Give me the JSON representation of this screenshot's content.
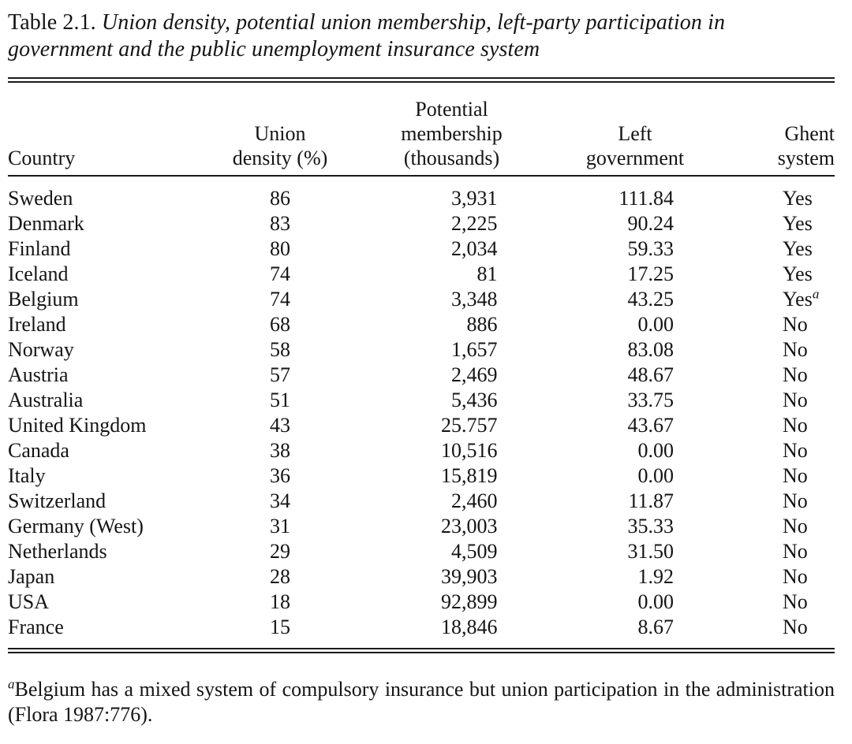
{
  "caption": {
    "label": "Table 2.1.",
    "title": "Union density, potential union membership, left-party participation in government and the public unemployment insurance system"
  },
  "headers": {
    "country": "Country",
    "density": [
      "Union",
      "density (%)"
    ],
    "membership": [
      "Potential",
      "membership",
      "(thousands)"
    ],
    "left": [
      "Left",
      "government"
    ],
    "ghent": [
      "Ghent",
      "system"
    ]
  },
  "rows": [
    {
      "country": "Sweden",
      "density": "86",
      "membership": "3,931",
      "left": "111.84",
      "ghent": "Yes",
      "note": ""
    },
    {
      "country": "Denmark",
      "density": "83",
      "membership": "2,225",
      "left": "90.24",
      "ghent": "Yes",
      "note": ""
    },
    {
      "country": "Finland",
      "density": "80",
      "membership": "2,034",
      "left": "59.33",
      "ghent": "Yes",
      "note": ""
    },
    {
      "country": "Iceland",
      "density": "74",
      "membership": "81",
      "left": "17.25",
      "ghent": "Yes",
      "note": ""
    },
    {
      "country": "Belgium",
      "density": "74",
      "membership": "3,348",
      "left": "43.25",
      "ghent": "Yes",
      "note": "a"
    },
    {
      "country": "Ireland",
      "density": "68",
      "membership": "886",
      "left": "0.00",
      "ghent": "No",
      "note": ""
    },
    {
      "country": "Norway",
      "density": "58",
      "membership": "1,657",
      "left": "83.08",
      "ghent": "No",
      "note": ""
    },
    {
      "country": "Austria",
      "density": "57",
      "membership": "2,469",
      "left": "48.67",
      "ghent": "No",
      "note": ""
    },
    {
      "country": "Australia",
      "density": "51",
      "membership": "5,436",
      "left": "33.75",
      "ghent": "No",
      "note": ""
    },
    {
      "country": "United Kingdom",
      "density": "43",
      "membership": "25.757",
      "left": "43.67",
      "ghent": "No",
      "note": ""
    },
    {
      "country": "Canada",
      "density": "38",
      "membership": "10,516",
      "left": "0.00",
      "ghent": "No",
      "note": ""
    },
    {
      "country": "Italy",
      "density": "36",
      "membership": "15,819",
      "left": "0.00",
      "ghent": "No",
      "note": ""
    },
    {
      "country": "Switzerland",
      "density": "34",
      "membership": "2,460",
      "left": "11.87",
      "ghent": "No",
      "note": ""
    },
    {
      "country": "Germany (West)",
      "density": "31",
      "membership": "23,003",
      "left": "35.33",
      "ghent": "No",
      "note": ""
    },
    {
      "country": "Netherlands",
      "density": "29",
      "membership": "4,509",
      "left": "31.50",
      "ghent": "No",
      "note": ""
    },
    {
      "country": "Japan",
      "density": "28",
      "membership": "39,903",
      "left": "1.92",
      "ghent": "No",
      "note": ""
    },
    {
      "country": "USA",
      "density": "18",
      "membership": "92,899",
      "left": "0.00",
      "ghent": "No",
      "note": ""
    },
    {
      "country": "France",
      "density": "15",
      "membership": "18,846",
      "left": "8.67",
      "ghent": "No",
      "note": ""
    }
  ],
  "footnote": {
    "marker": "a",
    "text": "Belgium has a mixed system of compulsory insurance but union participation in the administration (Flora 1987:776)."
  }
}
